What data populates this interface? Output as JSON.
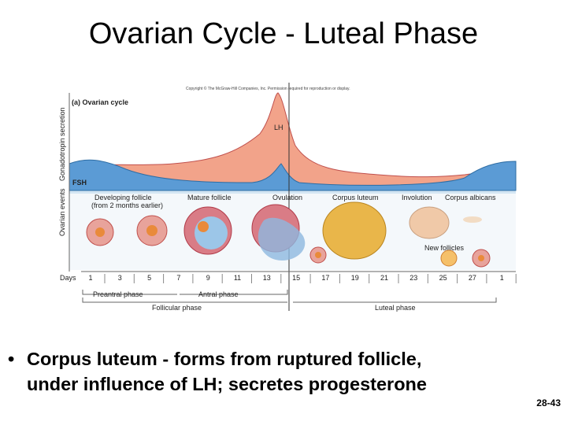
{
  "title": "Ovarian Cycle - Luteal Phase",
  "figure": {
    "copyright": "Copyright © The McGraw-Hill Companies, Inc. Permission required for reproduction or display.",
    "panel_label": "(a) Ovarian cycle",
    "axis_top": "Gonadotropin secretion",
    "axis_bottom": "Ovarian events",
    "lh": "LH",
    "fsh": "FSH",
    "events": [
      "Developing follicle",
      "(from 2 months earlier)",
      "Mature follicle",
      "Ovulation",
      "Corpus luteum",
      "Involution",
      "Corpus albicans"
    ],
    "new_follicles": "New follicles",
    "days_label": "Days",
    "days": [
      1,
      3,
      5,
      7,
      9,
      11,
      13,
      15,
      17,
      19,
      21,
      23,
      25,
      27,
      1
    ],
    "phases": {
      "preantral": "Preantral phase",
      "antral": "Antral phase",
      "follicular": "Follicular phase",
      "luteal": "Luteal phase"
    }
  },
  "bullet": {
    "lines": [
      "Corpus luteum - forms from ruptured follicle,",
      "under influence of LH; secretes progesterone"
    ]
  },
  "slide_number": "28-43"
}
